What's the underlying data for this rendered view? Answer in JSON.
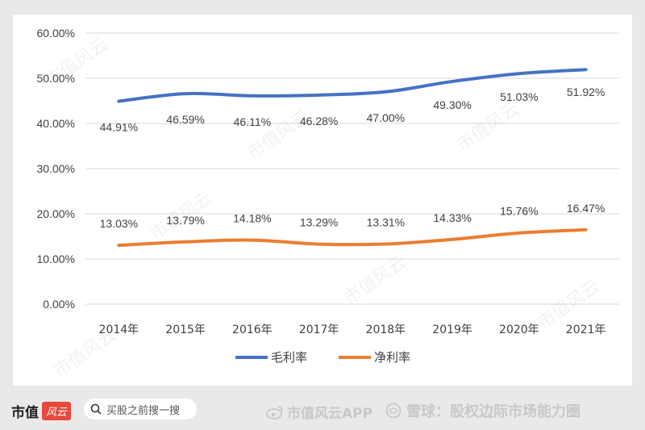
{
  "chart_data": {
    "type": "line",
    "categories": [
      "2014年",
      "2015年",
      "2016年",
      "2017年",
      "2018年",
      "2019年",
      "2020年",
      "2021年"
    ],
    "series": [
      {
        "name": "毛利率",
        "color": "#4472c4",
        "values": [
          44.91,
          46.59,
          46.11,
          46.28,
          47.0,
          49.3,
          51.03,
          51.92
        ],
        "labels": [
          "44.91%",
          "46.59%",
          "46.11%",
          "46.28%",
          "47.00%",
          "49.30%",
          "51.03%",
          "51.92%"
        ]
      },
      {
        "name": "净利率",
        "color": "#ed7d31",
        "values": [
          13.03,
          13.79,
          14.18,
          13.29,
          13.31,
          14.33,
          15.76,
          16.47
        ],
        "labels": [
          "13.03%",
          "13.79%",
          "14.18%",
          "13.29%",
          "13.31%",
          "14.33%",
          "15.76%",
          "16.47%"
        ]
      }
    ],
    "yticks": [
      "0.00%",
      "10.00%",
      "20.00%",
      "30.00%",
      "40.00%",
      "50.00%",
      "60.00%"
    ],
    "ylim": [
      0,
      60
    ],
    "grid": true,
    "legend_position": "bottom"
  },
  "watermark": "市值风云",
  "footer": {
    "logo_text": "市值",
    "logo_badge": "风云",
    "search_text": "买股之前搜一搜",
    "brand_text": "市值风云APP",
    "snowball_text": "雪球：股权边际市场能力圈"
  }
}
